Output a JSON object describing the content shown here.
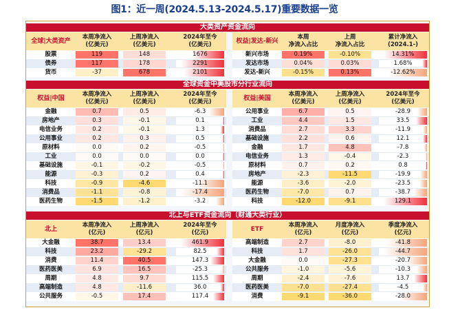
{
  "title": "图1：近一周(2024.5.13-2024.5.17)重要数据一览",
  "colors": {
    "band": "#c8102e",
    "header": "#fbe3a4",
    "pos": "#f5867f",
    "neg": "#fcd98a",
    "posbar": "#f0323c",
    "negbar": "#f4a57a"
  },
  "sections": [
    {
      "title": "大类资产资金流向"
    },
    {
      "title": "全球资金中美股市分行业流向"
    },
    {
      "title": "北上与ETF资金流向（财通大类行业）"
    }
  ],
  "panels": [
    {
      "id": "asset-flow",
      "headers": [
        "全球|大类资产",
        "本周净流入\n(亿美元)",
        "上周净流入\n(亿美元)",
        "2024年至今\n(亿美元)"
      ],
      "rows": [
        {
          "name": "股票",
          "c1": "119",
          "c2": "148",
          "c3": "1676"
        },
        {
          "name": "债券",
          "c1": "117",
          "c2": "178",
          "c3": "2291"
        },
        {
          "name": "货币",
          "c1": "-37",
          "c2": "678",
          "c3": "2101"
        }
      ]
    },
    {
      "id": "rights-flow",
      "headers": [
        "权益|发达-新兴",
        "本周\n净流入占比",
        "上周\n净流入占比",
        "累计净流入\n(2024.1-)"
      ],
      "rows": [
        {
          "name": "新兴市场",
          "c1": "0.19%",
          "c2": "-0.10%",
          "c3": "14.31%"
        },
        {
          "name": "发达市场",
          "c1": "0.04%",
          "c2": "0.03%",
          "c3": "1.68%"
        },
        {
          "name": "发达-新兴",
          "c1": "-0.15%",
          "c2": "0.13%",
          "c3": "-12.62%"
        }
      ]
    },
    {
      "id": "china-sector",
      "headers": [
        "权益|中国",
        "本周净流入\n(亿美元)",
        "上周净流入\n(亿美元)",
        "2024年至今\n(亿美元)"
      ],
      "rows": [
        {
          "name": "金融",
          "c1": "0.7",
          "c2": "0.5",
          "c3": "-6.3"
        },
        {
          "name": "房地产",
          "c1": "0.3",
          "c2": "-0.1",
          "c3": "0.1"
        },
        {
          "name": "电信业务",
          "c1": "0.2",
          "c2": "-0.1",
          "c3": "1.3"
        },
        {
          "name": "公用事业",
          "c1": "0.2",
          "c2": "0.3",
          "c3": "0.5"
        },
        {
          "name": "原材料",
          "c1": "0.0",
          "c2": "0.2",
          "c3": "-0.5"
        },
        {
          "name": "工业",
          "c1": "0.0",
          "c2": "0.0",
          "c3": "0.0"
        },
        {
          "name": "基础设施",
          "c1": "-0.1",
          "c2": "-0.2",
          "c3": "-0.5"
        },
        {
          "name": "能源",
          "c1": "-0.3",
          "c2": "0.2",
          "c3": "0.4"
        },
        {
          "name": "科技",
          "c1": "-0.9",
          "c2": "-4.6",
          "c3": "-11.1"
        },
        {
          "name": "消费品",
          "c1": "-1.1",
          "c2": "-0.8",
          "c3": "-17.4"
        },
        {
          "name": "医药生物",
          "c1": "-1.5",
          "c2": "-1.2",
          "c3": "-3.2"
        }
      ]
    },
    {
      "id": "us-sector",
      "headers": [
        "权益|美国",
        "本周净流入\n(亿美元)",
        "上周净流入\n(亿美元)",
        "2024年至今\n(亿美元)"
      ],
      "rows": [
        {
          "name": "公用事业",
          "c1": "6.7",
          "c2": "0.5",
          "c3": "-28.9"
        },
        {
          "name": "工业",
          "c1": "4.4",
          "c2": "1.5",
          "c3": "33.5"
        },
        {
          "name": "消费品",
          "c1": "2.7",
          "c2": "3.3",
          "c3": "-11.9"
        },
        {
          "name": "基础设施",
          "c1": "2.2",
          "c2": "0.6",
          "c3": "12.1"
        },
        {
          "name": "金融",
          "c1": "1.7",
          "c2": "4.8",
          "c3": "-7.8"
        },
        {
          "name": "电信业务",
          "c1": "1.3",
          "c2": "-0.4",
          "c3": "-2.3"
        },
        {
          "name": "原材料",
          "c1": "0.7",
          "c2": "0.2",
          "c3": "0.8"
        },
        {
          "name": "房地产",
          "c1": "-2.3",
          "c2": "-11.5",
          "c3": "-19.9"
        },
        {
          "name": "能源",
          "c1": "-3.6",
          "c2": "-2.0",
          "c3": "-23.5"
        },
        {
          "name": "医药生物",
          "c1": "-7.0",
          "c2": "0.7",
          "c3": "-38.7"
        },
        {
          "name": "科技",
          "c1": "-12.0",
          "c2": "-9.1",
          "c3": "129.1"
        }
      ]
    },
    {
      "id": "northbound",
      "headers": [
        "北上",
        "本周净流入\n(亿元)",
        "上周净流入\n(亿元)",
        "2024年至今\n(亿元)"
      ],
      "rows": [
        {
          "name": "大金融",
          "c1": "38.7",
          "c2": "13.4",
          "c3": "461.9"
        },
        {
          "name": "科技",
          "c1": "23.2",
          "c2": "-29.2",
          "c3": "82.5"
        },
        {
          "name": "消费",
          "c1": "11.4",
          "c2": "40.5",
          "c3": "147.3"
        },
        {
          "name": "医药医美",
          "c1": "6.9",
          "c2": "16.5",
          "c3": "-25.3"
        },
        {
          "name": "周期",
          "c1": "4.8",
          "c2": "9.7",
          "c3": "115.5"
        },
        {
          "name": "高端制造",
          "c1": "4.8",
          "c2": "-11.6",
          "c3": "36.0"
        },
        {
          "name": "公共服务",
          "c1": "-0.5",
          "c2": "17.4",
          "c3": "117.4"
        }
      ]
    },
    {
      "id": "etf",
      "headers": [
        "ETF",
        "本周净流入\n(亿元)",
        "月度净流入\n(亿元)",
        "季度净流入\n(亿元)"
      ],
      "rows": [
        {
          "name": "高端制造",
          "c1": "2.7",
          "c2": "-8.0",
          "c3": "-41.8"
        },
        {
          "name": "科技",
          "c1": "1.7",
          "c2": "-26.0",
          "c3": "-44.7"
        },
        {
          "name": "大金融",
          "c1": "0.0",
          "c2": "-27.3",
          "c3": "-20.7"
        },
        {
          "name": "公共服务",
          "c1": "-1.0",
          "c2": "-5.6",
          "c3": "-10.3"
        },
        {
          "name": "周期",
          "c1": "-2.4",
          "c2": "-7.6",
          "c3": "13.7"
        },
        {
          "name": "医药医美",
          "c1": "-7.0",
          "c2": "-27.4",
          "c3": "-4.5"
        },
        {
          "name": "消费",
          "c1": "-9.1",
          "c2": "-36.0",
          "c3": "-28.0"
        }
      ]
    }
  ]
}
